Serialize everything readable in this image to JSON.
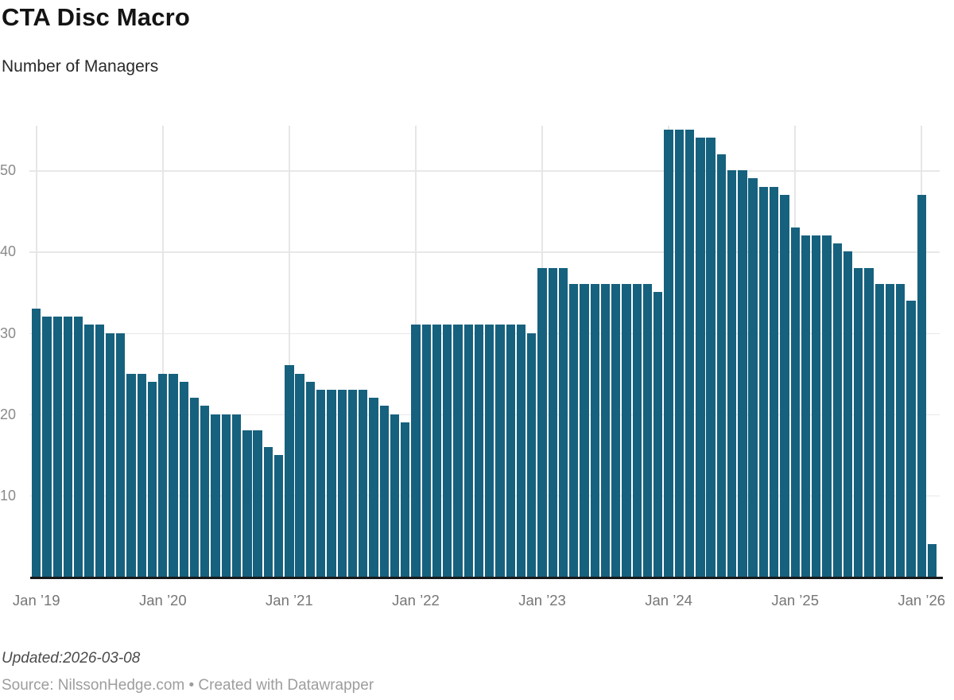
{
  "header": {
    "title": "CTA Disc Macro",
    "subtitle": "Number of Managers"
  },
  "footer": {
    "updated": "Updated:2026-03-08",
    "source": "Source: NilssonHedge.com • Created with Datawrapper"
  },
  "colors": {
    "bar": "#16617e",
    "gridline": "#e8e8e8",
    "axis_line": "#181818",
    "y_label": "#8a8a8a",
    "x_label": "#767676"
  },
  "chart_data": {
    "type": "bar",
    "title": "CTA Disc Macro",
    "subtitle": "Number of Managers",
    "ylabel": "Number of Managers",
    "xlabel": "",
    "ylim": [
      0,
      55.5
    ],
    "grid": true,
    "legend_position": "none",
    "y_ticks": [
      10,
      20,
      30,
      40,
      50
    ],
    "x_tick_labels": [
      "Jan ’19",
      "Jan ’20",
      "Jan ’21",
      "Jan ’22",
      "Jan ’23",
      "Jan ’24",
      "Jan ’25",
      "Jan ’26"
    ],
    "x_tick_every": 12,
    "series": [
      {
        "year": "2019",
        "values": [
          33,
          32,
          32,
          32,
          32,
          31,
          31,
          30,
          30,
          25,
          25,
          24
        ]
      },
      {
        "year": "2020",
        "values": [
          25,
          25,
          24,
          22,
          21,
          20,
          20,
          20,
          18,
          18,
          16,
          15
        ]
      },
      {
        "year": "2021",
        "values": [
          26,
          25,
          24,
          23,
          23,
          23,
          23,
          23,
          22,
          21,
          20,
          19
        ]
      },
      {
        "year": "2022",
        "values": [
          31,
          31,
          31,
          31,
          31,
          31,
          31,
          31,
          31,
          31,
          31,
          30
        ]
      },
      {
        "year": "2023",
        "values": [
          38,
          38,
          38,
          36,
          36,
          36,
          36,
          36,
          36,
          36,
          36,
          35
        ]
      },
      {
        "year": "2024",
        "values": [
          55,
          55,
          55,
          54,
          54,
          52,
          50,
          50,
          49,
          48,
          48,
          47
        ]
      },
      {
        "year": "2025",
        "values": [
          43,
          42,
          42,
          42,
          41,
          40,
          38,
          38,
          36,
          36,
          36,
          34
        ]
      },
      {
        "year": "2026",
        "values": [
          47,
          4
        ]
      }
    ]
  }
}
